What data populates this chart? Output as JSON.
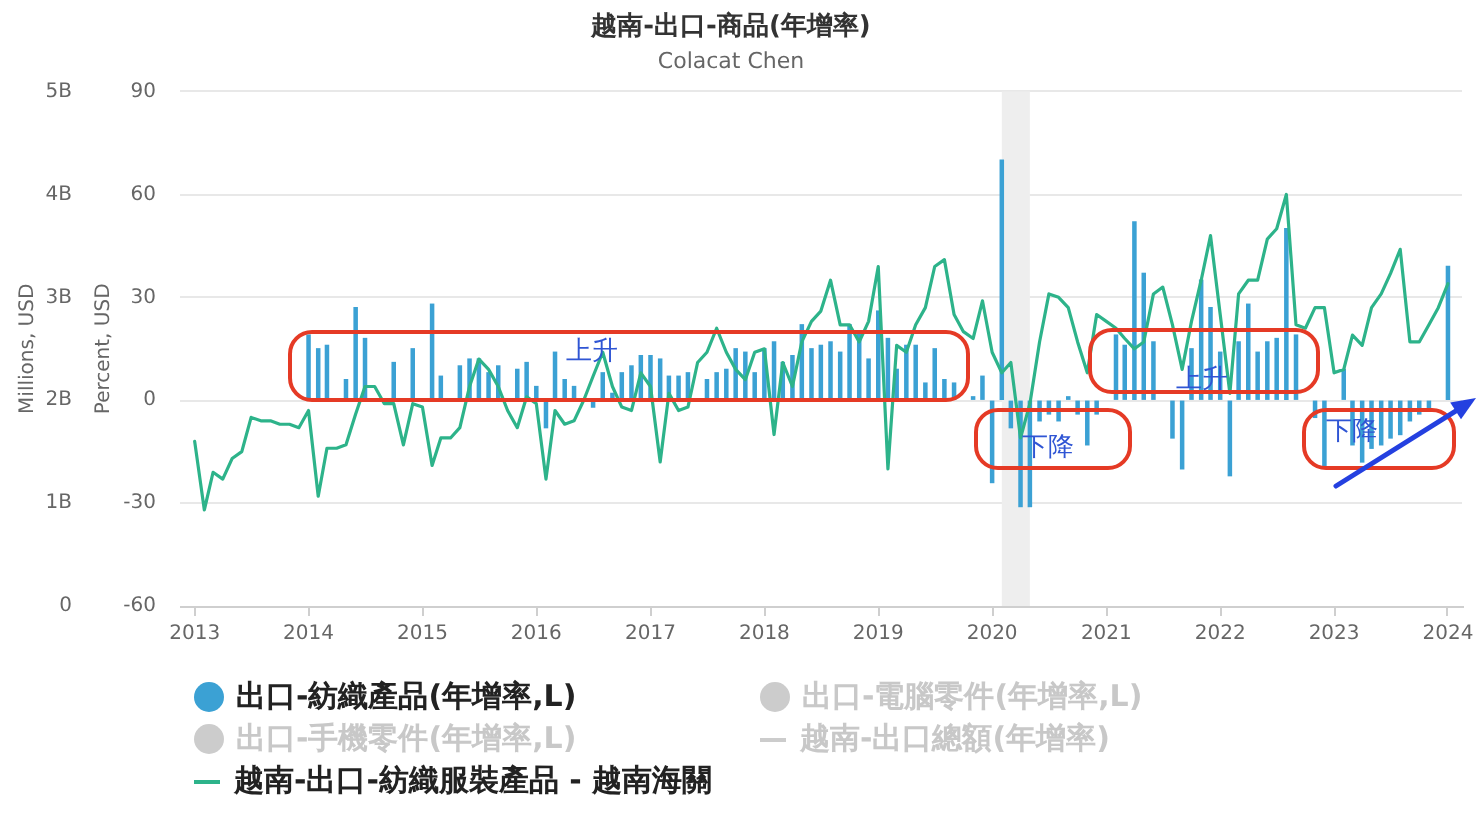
{
  "chart_data": {
    "type": "bar",
    "title": "越南-出口-商品(年增率)",
    "subtitle": "Colacat Chen",
    "ylabel": "Percent, USD",
    "y2label": "Millions, USD",
    "x": [
      "2013-01",
      "2013-02",
      "2013-03",
      "2013-04",
      "2013-05",
      "2013-06",
      "2013-07",
      "2013-08",
      "2013-09",
      "2013-10",
      "2013-11",
      "2013-12",
      "2014-01",
      "2014-02",
      "2014-03",
      "2014-04",
      "2014-05",
      "2014-06",
      "2014-07",
      "2014-08",
      "2014-09",
      "2014-10",
      "2014-11",
      "2014-12",
      "2015-01",
      "2015-02",
      "2015-03",
      "2015-04",
      "2015-05",
      "2015-06",
      "2015-07",
      "2015-08",
      "2015-09",
      "2015-10",
      "2015-11",
      "2015-12",
      "2016-01",
      "2016-02",
      "2016-03",
      "2016-04",
      "2016-05",
      "2016-06",
      "2016-07",
      "2016-08",
      "2016-09",
      "2016-10",
      "2016-11",
      "2016-12",
      "2017-01",
      "2017-02",
      "2017-03",
      "2017-04",
      "2017-05",
      "2017-06",
      "2017-07",
      "2017-08",
      "2017-09",
      "2017-10",
      "2017-11",
      "2017-12",
      "2018-01",
      "2018-02",
      "2018-03",
      "2018-04",
      "2018-05",
      "2018-06",
      "2018-07",
      "2018-08",
      "2018-09",
      "2018-10",
      "2018-11",
      "2018-12",
      "2019-01",
      "2019-02",
      "2019-03",
      "2019-04",
      "2019-05",
      "2019-06",
      "2019-07",
      "2019-08",
      "2019-09",
      "2019-10",
      "2019-11",
      "2019-12",
      "2020-01",
      "2020-02",
      "2020-03",
      "2020-04",
      "2020-05",
      "2020-06",
      "2020-07",
      "2020-08",
      "2020-09",
      "2020-10",
      "2020-11",
      "2020-12",
      "2021-01",
      "2021-02",
      "2021-03",
      "2021-04",
      "2021-05",
      "2021-06",
      "2021-07",
      "2021-08",
      "2021-09",
      "2021-10",
      "2021-11",
      "2021-12",
      "2022-01",
      "2022-02",
      "2022-03",
      "2022-04",
      "2022-05",
      "2022-06",
      "2022-07",
      "2022-08",
      "2022-09",
      "2022-10",
      "2022-11",
      "2022-12",
      "2023-01",
      "2023-02",
      "2023-03",
      "2023-04",
      "2023-05",
      "2023-06",
      "2023-07",
      "2023-08",
      "2023-09",
      "2023-10",
      "2023-11",
      "2023-12",
      "2024-01"
    ],
    "xlim": [
      "2012-11-15",
      "2024-02-15"
    ],
    "xticks": [
      "2013",
      "2014",
      "2015",
      "2016",
      "2017",
      "2018",
      "2019",
      "2020",
      "2021",
      "2022",
      "2023",
      "2024"
    ],
    "ylim": [
      -60,
      90
    ],
    "yticks": [
      -60,
      -30,
      0,
      30,
      60,
      90
    ],
    "y2lim": [
      0,
      5000000000
    ],
    "y2ticks": [
      0,
      {
        "value": 1000000000,
        "label": "1B"
      },
      {
        "value": 2000000000,
        "label": "2B"
      },
      {
        "value": 3000000000,
        "label": "3B"
      },
      {
        "value": 4000000000,
        "label": "4B"
      },
      {
        "value": 5000000000,
        "label": "5B"
      }
    ],
    "grid": "y",
    "legend": "bottom",
    "bands": [
      {
        "axis": "x",
        "from": "2020-02",
        "to": "2020-05",
        "color": "#eeeeee"
      }
    ],
    "annotations": [
      "上升",
      "下降",
      "上升",
      "下降"
    ],
    "series": [
      {
        "name": "出口-紡織產品(年增率,L)",
        "color": "#3ba1d4",
        "values": [
          null,
          null,
          null,
          null,
          null,
          null,
          null,
          null,
          null,
          null,
          null,
          null,
          19,
          15,
          16,
          null,
          6,
          27,
          18,
          null,
          null,
          11,
          null,
          15,
          null,
          28,
          7,
          null,
          10,
          12,
          12,
          8,
          10,
          null,
          9,
          11,
          4,
          -8,
          14,
          6,
          4,
          null,
          -2,
          8,
          2,
          8,
          10,
          13,
          13,
          12,
          7,
          7,
          8,
          null,
          6,
          8,
          9,
          15,
          14,
          8,
          15,
          17,
          11,
          13,
          22,
          15,
          16,
          17,
          14,
          22,
          20,
          12,
          26,
          18,
          9,
          16,
          16,
          5,
          15,
          6,
          5,
          null,
          1,
          7,
          -24,
          70,
          -8,
          -31,
          -31,
          -6,
          -4,
          -6,
          1,
          -4,
          -13,
          -4,
          null,
          19,
          16,
          52,
          37,
          17,
          null,
          -11,
          -20,
          15,
          35,
          27,
          14,
          -22,
          17,
          28,
          14,
          17,
          18,
          50,
          19,
          null,
          -5,
          -19,
          null,
          9,
          -13,
          -18,
          -14,
          -13,
          -11,
          -10,
          -6,
          -4,
          -3,
          null,
          39
        ]
      },
      {
        "name": "出口-電腦零件(年增率,L)",
        "color": "#cccccc",
        "values": [
          null,
          null,
          null,
          null,
          null,
          null,
          null,
          null,
          null,
          null,
          null,
          null,
          null,
          null,
          null,
          null,
          null,
          null,
          null,
          null,
          null,
          null,
          null,
          null,
          null,
          null,
          null,
          null,
          null,
          null,
          null,
          null,
          null,
          null,
          null,
          null,
          null,
          null,
          null,
          null,
          null,
          null,
          null,
          null,
          null,
          null,
          null,
          null,
          null,
          null,
          null,
          null,
          null,
          null,
          null,
          null,
          null,
          null,
          null,
          null,
          null,
          null,
          null,
          null,
          null,
          null,
          null,
          null,
          null,
          null,
          null,
          null,
          null,
          null,
          null,
          null,
          null,
          null,
          null,
          null,
          null,
          null,
          null,
          null,
          null,
          null,
          null,
          null,
          null,
          null,
          null,
          null,
          null,
          null,
          null,
          null,
          null,
          null,
          null,
          null,
          null,
          null,
          null,
          null,
          null,
          null,
          null,
          null,
          null,
          null,
          null,
          null,
          null,
          null,
          null,
          null,
          null,
          null,
          null,
          null,
          null,
          null,
          null,
          null,
          null,
          null,
          null,
          null,
          null,
          null,
          null,
          null,
          null
        ]
      },
      {
        "name": "出口-手機零件(年增率,L)",
        "color": "#cccccc",
        "values": [
          null,
          null,
          null,
          null,
          null,
          null,
          null,
          null,
          null,
          null,
          null,
          null,
          null,
          null,
          null,
          null,
          null,
          null,
          null,
          null,
          null,
          null,
          null,
          null,
          null,
          null,
          null,
          null,
          null,
          null,
          null,
          null,
          null,
          null,
          null,
          null,
          null,
          null,
          null,
          null,
          null,
          null,
          null,
          null,
          null,
          null,
          null,
          null,
          null,
          null,
          null,
          null,
          null,
          null,
          null,
          null,
          null,
          null,
          null,
          null,
          null,
          null,
          null,
          null,
          null,
          null,
          null,
          null,
          null,
          null,
          null,
          null,
          null,
          null,
          null,
          null,
          null,
          null,
          null,
          null,
          null,
          null,
          null,
          null,
          null,
          null,
          null,
          null,
          null,
          null,
          null,
          null,
          null,
          null,
          null,
          null,
          null,
          null,
          null,
          null,
          null,
          null,
          null,
          null,
          null,
          null,
          null,
          null,
          null,
          null,
          null,
          null,
          null,
          null,
          null,
          null,
          null,
          null,
          null,
          null,
          null,
          null,
          null,
          null,
          null,
          null,
          null,
          null,
          null,
          null,
          null,
          null,
          null
        ]
      },
      {
        "name": "越南-出口總額(年增率)",
        "type": "line",
        "color": "#cccccc",
        "values": [
          null,
          null,
          null,
          null,
          null,
          null,
          null,
          null,
          null,
          null,
          null,
          null,
          null,
          null,
          null,
          null,
          null,
          null,
          null,
          null,
          null,
          null,
          null,
          null,
          null,
          null,
          null,
          null,
          null,
          null,
          null,
          null,
          null,
          null,
          null,
          null,
          null,
          null,
          null,
          null,
          null,
          null,
          null,
          null,
          null,
          null,
          null,
          null,
          null,
          null,
          null,
          null,
          null,
          null,
          null,
          null,
          null,
          null,
          null,
          null,
          null,
          null,
          null,
          null,
          null,
          null,
          null,
          null,
          null,
          null,
          null,
          null,
          null,
          null,
          null,
          null,
          null,
          null,
          null,
          null,
          null,
          null,
          null,
          null,
          null,
          null,
          null,
          null,
          null,
          null,
          null,
          null,
          null,
          null,
          null,
          null,
          null,
          null,
          null,
          null,
          null,
          null,
          null,
          null,
          null,
          null,
          null,
          null,
          null,
          null,
          null,
          null,
          null,
          null,
          null,
          null,
          null,
          null,
          null,
          null,
          null,
          null,
          null,
          null,
          null,
          null,
          null,
          null,
          null,
          null,
          null,
          null,
          null
        ]
      },
      {
        "name": "越南-出口-紡織服裝產品 - 越南海關",
        "type": "line",
        "color": "#2db38a",
        "values": [
          -12,
          -32,
          -21,
          -23,
          -17,
          -15,
          -5,
          -6,
          -6,
          -7,
          -7,
          -8,
          -3,
          -28,
          -14,
          -14,
          -13,
          -4,
          4,
          4,
          -1,
          -1,
          -13,
          -1,
          -2,
          -19,
          -11,
          -11,
          -8,
          4,
          12,
          9,
          4,
          -3,
          -8,
          1,
          -1,
          -23,
          -3,
          -7,
          -6,
          0,
          7,
          14,
          4,
          -2,
          -3,
          8,
          4,
          -18,
          2,
          -3,
          -2,
          11,
          14,
          21,
          14,
          9,
          6,
          14,
          15,
          -10,
          11,
          4,
          17,
          23,
          26,
          35,
          22,
          22,
          17,
          23,
          39,
          -20,
          16,
          14,
          22,
          27,
          39,
          41,
          25,
          20,
          18,
          29,
          14,
          8,
          11,
          -11,
          -1,
          17,
          31,
          30,
          27,
          17,
          8,
          25,
          23,
          21,
          18,
          15,
          17,
          31,
          33,
          22,
          9,
          23,
          35,
          48,
          25,
          2,
          31,
          35,
          35,
          47,
          50,
          60,
          22,
          21,
          27,
          27,
          8,
          9,
          19,
          16,
          27,
          31,
          37,
          44,
          17,
          17,
          22,
          27,
          34
        ]
      }
    ]
  }
}
